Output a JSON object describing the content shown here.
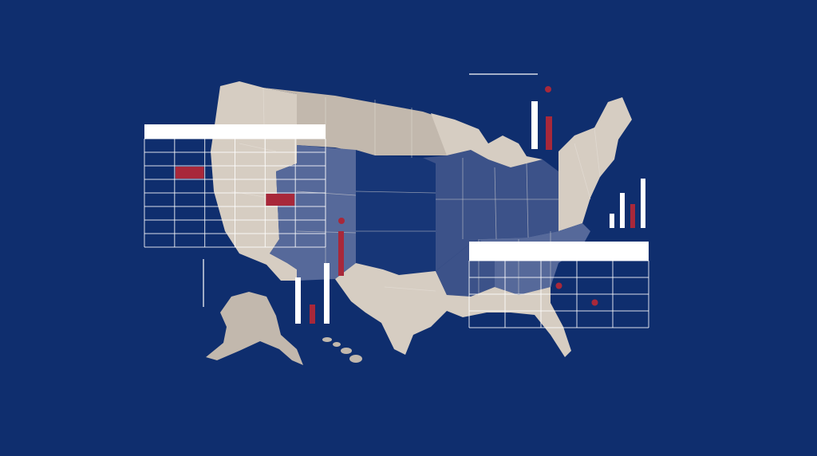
{
  "colors": {
    "background": "#0f2e6e",
    "land_light": "#d6cdc2",
    "land_mid": "#c2b8ad",
    "region_mid_blue": "#56699a",
    "region_blue": "#3c5289",
    "region_dark": "#173677",
    "border": "#eae4dc",
    "overlay_white": "#ffffff",
    "accent_red": "#a8283a"
  },
  "tables": [
    {
      "name": "west-data-table",
      "rows": 8,
      "cols": 6,
      "highlights": [
        [
          2,
          1
        ],
        [
          4,
          4
        ]
      ]
    },
    {
      "name": "southeast-data-table",
      "rows": 4,
      "cols": 5,
      "dots": [
        [
          1,
          2
        ],
        [
          2,
          3
        ]
      ]
    }
  ],
  "bar_groups": [
    {
      "name": "northeast-bars",
      "colors": [
        "white",
        "red"
      ]
    },
    {
      "name": "east-coast-bars",
      "colors": [
        "white",
        "white",
        "red",
        "white"
      ]
    },
    {
      "name": "southwest-bars",
      "colors": [
        "white",
        "red",
        "white"
      ]
    },
    {
      "name": "central-bar",
      "colors": [
        "red"
      ]
    }
  ]
}
